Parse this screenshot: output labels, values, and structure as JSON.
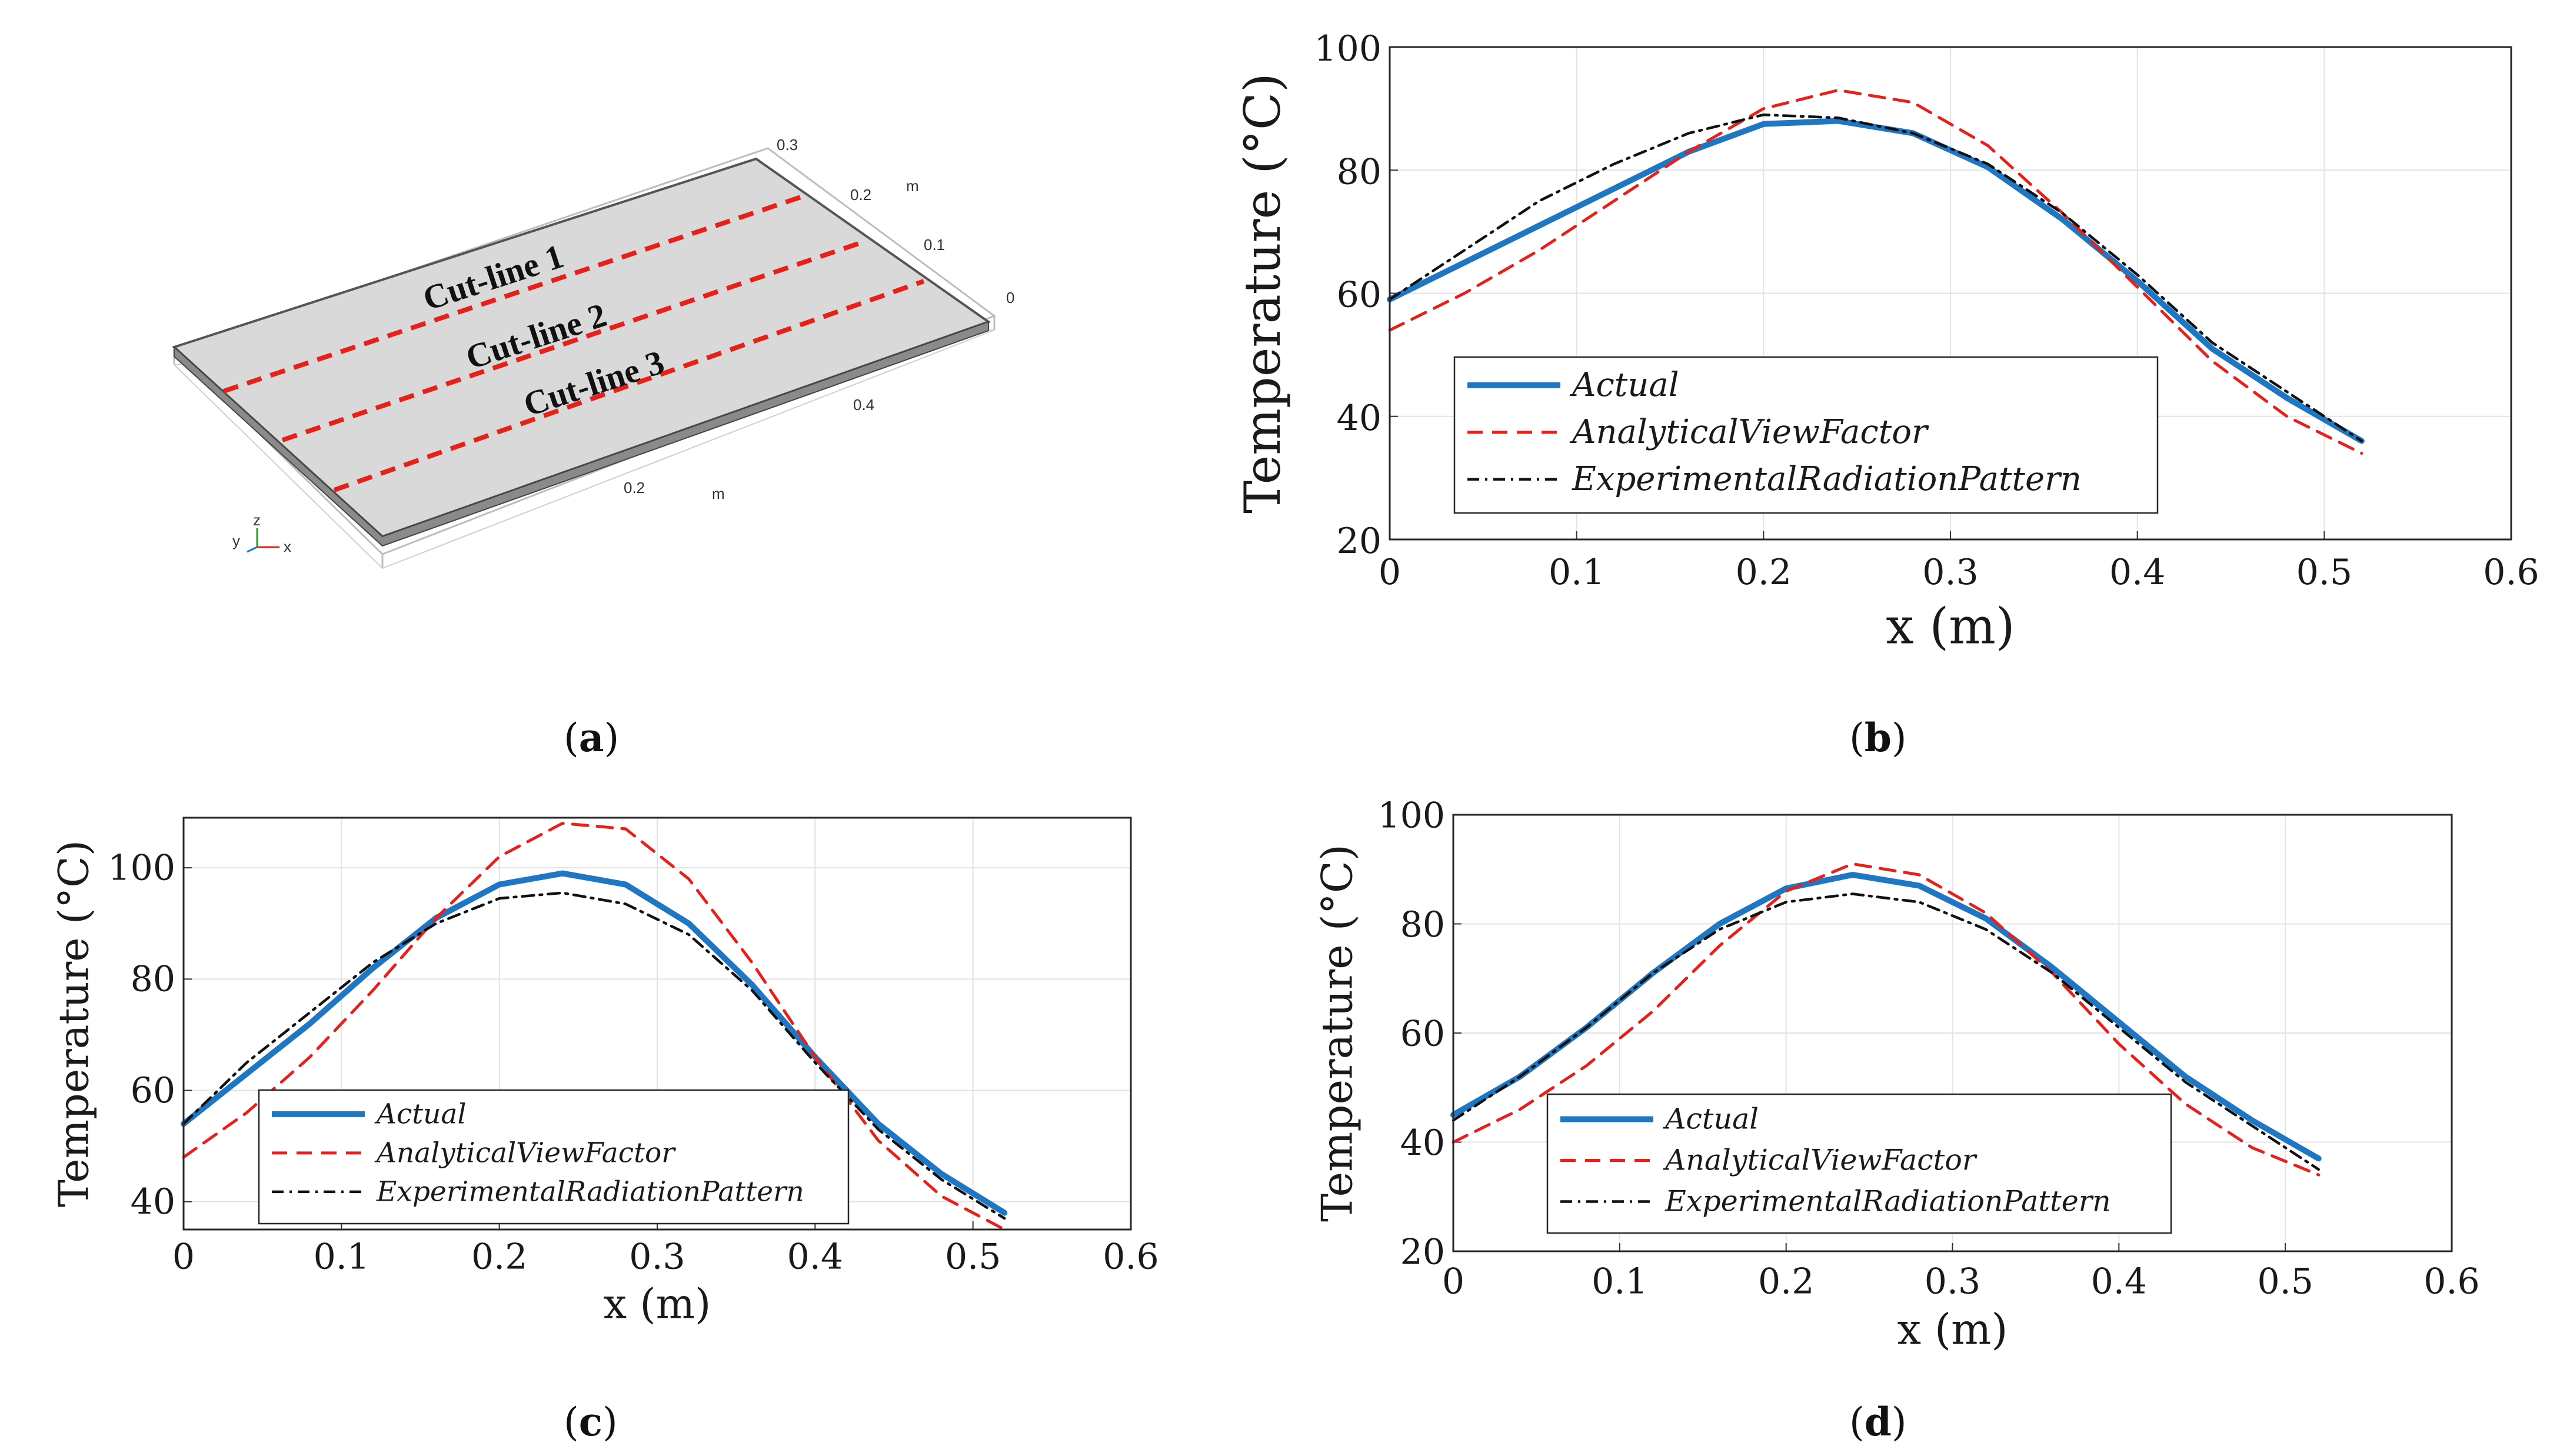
{
  "captions": {
    "a": "a",
    "b": "b",
    "c": "c",
    "d": "d"
  },
  "geometry_panel": {
    "cut_lines": [
      "Cut-line 1",
      "Cut-line 2",
      "Cut-line 3"
    ],
    "y_ticks": [
      "0.3",
      "0.2",
      "0.1",
      "0"
    ],
    "x_ticks": [
      "0.4",
      "0.2"
    ],
    "unit_labels": [
      "m",
      "m"
    ],
    "axis_triad": [
      "y",
      "z",
      "x"
    ],
    "colors": {
      "cut_line": "#e8201a",
      "plate": "#d9d9d9"
    }
  },
  "chart_data": [
    {
      "panel": "b",
      "type": "line",
      "title": "",
      "xlabel": "x (m)",
      "ylabel": "Temperature (°C)",
      "xlim": [
        0,
        0.6
      ],
      "ylim": [
        20,
        100
      ],
      "xticks": [
        "0",
        "0.1",
        "0.2",
        "0.3",
        "0.4",
        "0.5",
        "0.6"
      ],
      "yticks": [
        "20",
        "40",
        "60",
        "80",
        "100"
      ],
      "grid": true,
      "legend": "lower-left",
      "x": [
        0,
        0.04,
        0.08,
        0.12,
        0.16,
        0.2,
        0.24,
        0.28,
        0.32,
        0.36,
        0.4,
        0.44,
        0.48,
        0.52
      ],
      "series": [
        {
          "name": "Actual",
          "color": "#1f77c4",
          "style": "solid",
          "values": [
            59,
            65,
            71,
            77,
            83,
            87.5,
            88,
            86,
            80.5,
            72,
            62,
            51,
            43,
            36
          ]
        },
        {
          "name": "AnalyticalViewFactor",
          "color": "#e8201a",
          "style": "dashed",
          "values": [
            54,
            60,
            67,
            75,
            83,
            90,
            93,
            91,
            84,
            73,
            61,
            49,
            40,
            34
          ]
        },
        {
          "name": "ExperimentalRadiationPattern",
          "color": "#111111",
          "style": "dashdot",
          "values": [
            59,
            67,
            75,
            81,
            86,
            89,
            88.5,
            86,
            81,
            73,
            63,
            52,
            44,
            36
          ]
        }
      ]
    },
    {
      "panel": "c",
      "type": "line",
      "title": "",
      "xlabel": "x (m)",
      "ylabel": "Temperature (°C)",
      "xlim": [
        0,
        0.6
      ],
      "ylim": [
        35,
        109
      ],
      "xticks": [
        "0",
        "0.1",
        "0.2",
        "0.3",
        "0.4",
        "0.5",
        "0.6"
      ],
      "yticks": [
        "40",
        "60",
        "80",
        "100"
      ],
      "grid": true,
      "legend": "lower-left",
      "x": [
        0,
        0.04,
        0.08,
        0.12,
        0.16,
        0.2,
        0.24,
        0.28,
        0.32,
        0.36,
        0.4,
        0.44,
        0.48,
        0.52
      ],
      "series": [
        {
          "name": "Actual",
          "color": "#1f77c4",
          "style": "solid",
          "values": [
            54,
            63,
            72,
            82,
            91,
            97,
            99,
            97,
            90,
            79,
            66,
            54,
            45,
            38
          ]
        },
        {
          "name": "AnalyticalViewFactor",
          "color": "#e8201a",
          "style": "dashed",
          "values": [
            48,
            56,
            66,
            78,
            91,
            102,
            108,
            107,
            98,
            83,
            66,
            51,
            41,
            35
          ]
        },
        {
          "name": "ExperimentalRadiationPattern",
          "color": "#111111",
          "style": "dashdot",
          "values": [
            54,
            65,
            74,
            83,
            90,
            94.5,
            95.5,
            93.5,
            88,
            78,
            65,
            53,
            44,
            37
          ]
        }
      ]
    },
    {
      "panel": "d",
      "type": "line",
      "title": "",
      "xlabel": "x (m)",
      "ylabel": "Temperature (°C)",
      "xlim": [
        0,
        0.6
      ],
      "ylim": [
        20,
        100
      ],
      "xticks": [
        "0",
        "0.1",
        "0.2",
        "0.3",
        "0.4",
        "0.5",
        "0.6"
      ],
      "yticks": [
        "20",
        "40",
        "60",
        "80",
        "100"
      ],
      "grid": true,
      "legend": "lower-left",
      "x": [
        0,
        0.04,
        0.08,
        0.12,
        0.16,
        0.2,
        0.24,
        0.28,
        0.32,
        0.36,
        0.4,
        0.44,
        0.48,
        0.52
      ],
      "series": [
        {
          "name": "Actual",
          "color": "#1f77c4",
          "style": "solid",
          "values": [
            45,
            52,
            61,
            71,
            80,
            86.5,
            89,
            87,
            81,
            72,
            62,
            52,
            44,
            37
          ]
        },
        {
          "name": "AnalyticalViewFactor",
          "color": "#e8201a",
          "style": "dashed",
          "values": [
            40,
            46,
            54,
            64,
            76,
            86,
            91,
            89,
            82,
            71,
            58,
            47,
            39,
            34
          ]
        },
        {
          "name": "ExperimentalRadiationPattern",
          "color": "#111111",
          "style": "dashdot",
          "values": [
            44,
            52,
            61,
            71,
            79,
            84,
            85.5,
            84,
            79,
            71,
            61,
            51,
            43,
            35
          ]
        }
      ]
    }
  ]
}
